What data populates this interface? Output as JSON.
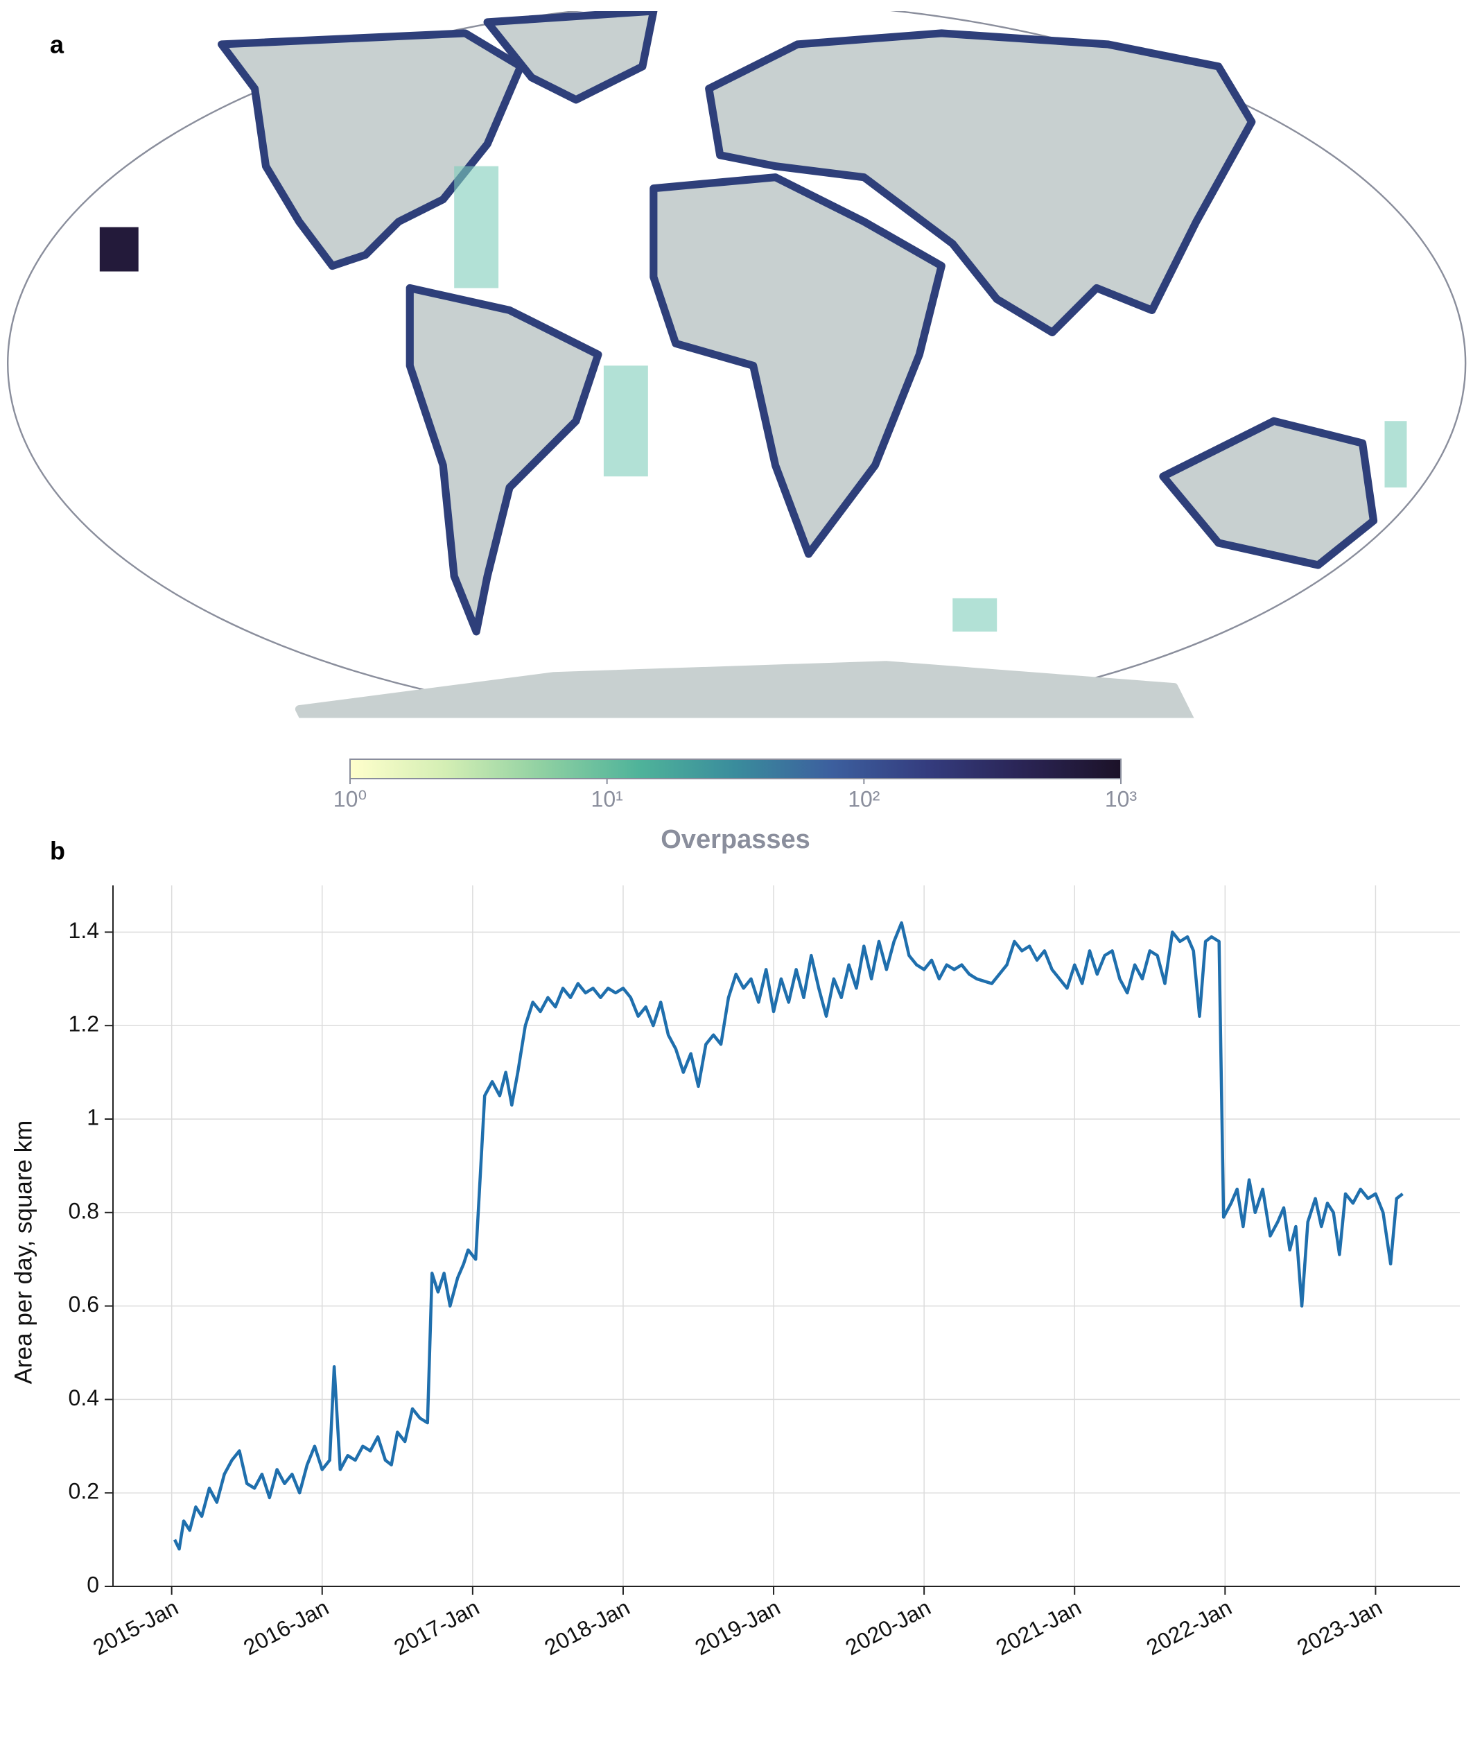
{
  "chart_data": [
    {
      "type": "colorbar",
      "panel": "a",
      "title": "Overpasses",
      "log": true,
      "xlim": [
        1,
        1000
      ],
      "xticks": [
        {
          "value": 1,
          "label": "10⁰"
        },
        {
          "value": 10,
          "label": "10¹"
        },
        {
          "value": 100,
          "label": "10²"
        },
        {
          "value": 1000,
          "label": "10³"
        }
      ],
      "colors": [
        "#ffffcc",
        "#d3eeb4",
        "#8fd0a2",
        "#4fb39a",
        "#3a8c9c",
        "#3c5f9e",
        "#343c7e",
        "#2a2454",
        "#1c1228"
      ]
    },
    {
      "type": "line",
      "panel": "b",
      "y_label": "Area per day, square km",
      "color": "#1f6fad",
      "grid": true,
      "xlim": [
        2014.61,
        2023.56
      ],
      "ylim": [
        0,
        1.5
      ],
      "xticks": [
        {
          "value": 2015,
          "label": "2015-Jan"
        },
        {
          "value": 2016,
          "label": "2016-Jan"
        },
        {
          "value": 2017,
          "label": "2017-Jan"
        },
        {
          "value": 2018,
          "label": "2018-Jan"
        },
        {
          "value": 2019,
          "label": "2019-Jan"
        },
        {
          "value": 2020,
          "label": "2020-Jan"
        },
        {
          "value": 2021,
          "label": "2021-Jan"
        },
        {
          "value": 2022,
          "label": "2022-Jan"
        },
        {
          "value": 2023,
          "label": "2023-Jan"
        }
      ],
      "yticks": [
        0,
        0.2,
        0.4,
        0.6,
        0.8,
        1,
        1.2,
        1.4
      ],
      "x": [
        2015.02,
        2015.05,
        2015.08,
        2015.12,
        2015.16,
        2015.2,
        2015.25,
        2015.3,
        2015.35,
        2015.4,
        2015.45,
        2015.5,
        2015.55,
        2015.6,
        2015.65,
        2015.7,
        2015.75,
        2015.8,
        2015.85,
        2015.9,
        2015.95,
        2016.0,
        2016.05,
        2016.08,
        2016.12,
        2016.17,
        2016.22,
        2016.27,
        2016.32,
        2016.37,
        2016.42,
        2016.46,
        2016.5,
        2016.55,
        2016.6,
        2016.65,
        2016.7,
        2016.73,
        2016.77,
        2016.81,
        2016.85,
        2016.9,
        2016.94,
        2016.97,
        2017.02,
        2017.08,
        2017.13,
        2017.18,
        2017.22,
        2017.26,
        2017.3,
        2017.35,
        2017.4,
        2017.45,
        2017.5,
        2017.55,
        2017.6,
        2017.65,
        2017.7,
        2017.75,
        2017.8,
        2017.85,
        2017.9,
        2017.95,
        2018.0,
        2018.05,
        2018.1,
        2018.15,
        2018.2,
        2018.25,
        2018.3,
        2018.35,
        2018.4,
        2018.45,
        2018.5,
        2018.55,
        2018.6,
        2018.65,
        2018.7,
        2018.75,
        2018.8,
        2018.85,
        2018.9,
        2018.95,
        2019.0,
        2019.05,
        2019.1,
        2019.15,
        2019.2,
        2019.25,
        2019.3,
        2019.35,
        2019.4,
        2019.45,
        2019.5,
        2019.55,
        2019.6,
        2019.65,
        2019.7,
        2019.75,
        2019.8,
        2019.85,
        2019.9,
        2019.95,
        2020.0,
        2020.05,
        2020.1,
        2020.15,
        2020.2,
        2020.25,
        2020.3,
        2020.35,
        2020.45,
        2020.55,
        2020.6,
        2020.65,
        2020.7,
        2020.75,
        2020.8,
        2020.85,
        2020.9,
        2020.95,
        2021.0,
        2021.05,
        2021.1,
        2021.15,
        2021.2,
        2021.25,
        2021.3,
        2021.35,
        2021.4,
        2021.45,
        2021.5,
        2021.55,
        2021.6,
        2021.65,
        2021.7,
        2021.75,
        2021.79,
        2021.83,
        2021.87,
        2021.91,
        2021.96,
        2021.99,
        2022.04,
        2022.08,
        2022.12,
        2022.16,
        2022.2,
        2022.25,
        2022.3,
        2022.35,
        2022.39,
        2022.43,
        2022.47,
        2022.51,
        2022.55,
        2022.6,
        2022.64,
        2022.68,
        2022.72,
        2022.76,
        2022.8,
        2022.85,
        2022.9,
        2022.95,
        2023.0,
        2023.05,
        2023.1,
        2023.14,
        2023.18
      ],
      "values": [
        0.1,
        0.08,
        0.14,
        0.12,
        0.17,
        0.15,
        0.21,
        0.18,
        0.24,
        0.27,
        0.29,
        0.22,
        0.21,
        0.24,
        0.19,
        0.25,
        0.22,
        0.24,
        0.2,
        0.26,
        0.3,
        0.25,
        0.27,
        0.47,
        0.25,
        0.28,
        0.27,
        0.3,
        0.29,
        0.32,
        0.27,
        0.26,
        0.33,
        0.31,
        0.38,
        0.36,
        0.35,
        0.67,
        0.63,
        0.67,
        0.6,
        0.66,
        0.69,
        0.72,
        0.7,
        1.05,
        1.08,
        1.05,
        1.1,
        1.03,
        1.1,
        1.2,
        1.25,
        1.23,
        1.26,
        1.24,
        1.28,
        1.26,
        1.29,
        1.27,
        1.28,
        1.26,
        1.28,
        1.27,
        1.28,
        1.26,
        1.22,
        1.24,
        1.2,
        1.25,
        1.18,
        1.15,
        1.1,
        1.14,
        1.07,
        1.16,
        1.18,
        1.16,
        1.26,
        1.31,
        1.28,
        1.3,
        1.25,
        1.32,
        1.23,
        1.3,
        1.25,
        1.32,
        1.26,
        1.35,
        1.28,
        1.22,
        1.3,
        1.26,
        1.33,
        1.28,
        1.37,
        1.3,
        1.38,
        1.32,
        1.38,
        1.42,
        1.35,
        1.33,
        1.32,
        1.34,
        1.3,
        1.33,
        1.32,
        1.33,
        1.31,
        1.3,
        1.29,
        1.33,
        1.38,
        1.36,
        1.37,
        1.34,
        1.36,
        1.32,
        1.3,
        1.28,
        1.33,
        1.29,
        1.36,
        1.31,
        1.35,
        1.36,
        1.3,
        1.27,
        1.33,
        1.3,
        1.36,
        1.35,
        1.29,
        1.4,
        1.38,
        1.39,
        1.36,
        1.22,
        1.38,
        1.39,
        1.38,
        0.79,
        0.82,
        0.85,
        0.77,
        0.87,
        0.8,
        0.85,
        0.75,
        0.78,
        0.81,
        0.72,
        0.77,
        0.6,
        0.78,
        0.83,
        0.77,
        0.82,
        0.8,
        0.71,
        0.84,
        0.82,
        0.85,
        0.83,
        0.84,
        0.8,
        0.69,
        0.83,
        0.84
      ]
    }
  ]
}
